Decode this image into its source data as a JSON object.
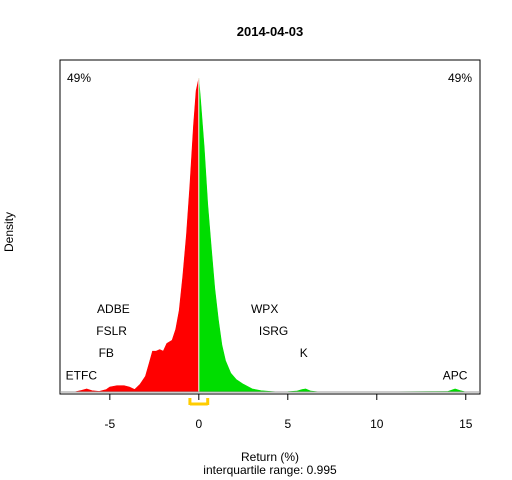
{
  "chart_data": {
    "type": "area",
    "title": "2014-04-03",
    "xlabel": "Return (%)",
    "ylabel": "Density",
    "subtitle": "interquartile range: 0.995",
    "xlim": [
      -7.8,
      15.8
    ],
    "ylim": [
      0,
      1.02
    ],
    "xticks": [
      -5,
      0,
      5,
      10,
      15
    ],
    "neg_pct_label": "49%",
    "pos_pct_label": "49%",
    "neg_color": "#ff0000",
    "pos_color": "#00dd00",
    "iqr_color": "#ffcc00",
    "iqr": [
      -0.5,
      0.5
    ],
    "density": [
      [
        -7.0,
        0.0
      ],
      [
        -6.6,
        0.005
      ],
      [
        -6.3,
        0.01
      ],
      [
        -6.0,
        0.004
      ],
      [
        -5.6,
        0.002
      ],
      [
        -5.2,
        0.008
      ],
      [
        -5.0,
        0.016
      ],
      [
        -4.6,
        0.02
      ],
      [
        -4.2,
        0.02
      ],
      [
        -3.9,
        0.016
      ],
      [
        -3.6,
        0.008
      ],
      [
        -3.3,
        0.025
      ],
      [
        -3.0,
        0.05
      ],
      [
        -2.8,
        0.09
      ],
      [
        -2.6,
        0.13
      ],
      [
        -2.4,
        0.13
      ],
      [
        -2.2,
        0.135
      ],
      [
        -2.0,
        0.13
      ],
      [
        -1.8,
        0.155
      ],
      [
        -1.5,
        0.165
      ],
      [
        -1.3,
        0.2
      ],
      [
        -1.1,
        0.26
      ],
      [
        -0.9,
        0.37
      ],
      [
        -0.7,
        0.5
      ],
      [
        -0.5,
        0.66
      ],
      [
        -0.3,
        0.85
      ],
      [
        -0.15,
        0.96
      ],
      [
        0.0,
        1.0
      ],
      [
        0.1,
        0.93
      ],
      [
        0.3,
        0.78
      ],
      [
        0.5,
        0.6
      ],
      [
        0.7,
        0.46
      ],
      [
        0.9,
        0.33
      ],
      [
        1.1,
        0.23
      ],
      [
        1.3,
        0.15
      ],
      [
        1.5,
        0.1
      ],
      [
        1.8,
        0.06
      ],
      [
        2.1,
        0.04
      ],
      [
        2.5,
        0.025
      ],
      [
        3.0,
        0.01
      ],
      [
        3.5,
        0.004
      ],
      [
        4.0,
        0.002
      ],
      [
        4.5,
        0.0
      ],
      [
        5.0,
        0.001
      ],
      [
        5.5,
        0.003
      ],
      [
        5.8,
        0.008
      ],
      [
        6.0,
        0.01
      ],
      [
        6.3,
        0.003
      ],
      [
        6.8,
        0.0
      ],
      [
        10.0,
        0.0
      ],
      [
        14.0,
        0.002
      ],
      [
        14.4,
        0.01
      ],
      [
        14.7,
        0.004
      ],
      [
        15.0,
        0.0
      ]
    ],
    "annotations": [
      {
        "text": "ADBE",
        "x": -4.8,
        "y": 0.252
      },
      {
        "text": "FSLR",
        "x": -4.9,
        "y": 0.182
      },
      {
        "text": "FB",
        "x": -5.2,
        "y": 0.112
      },
      {
        "text": "ETFC",
        "x": -6.6,
        "y": 0.04
      },
      {
        "text": "WPX",
        "x": 3.7,
        "y": 0.252
      },
      {
        "text": "ISRG",
        "x": 4.2,
        "y": 0.182
      },
      {
        "text": "K",
        "x": 5.9,
        "y": 0.112
      },
      {
        "text": "APC",
        "x": 14.4,
        "y": 0.04
      }
    ]
  }
}
